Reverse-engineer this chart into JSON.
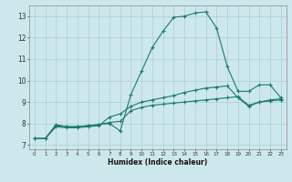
{
  "title": "",
  "xlabel": "Humidex (Indice chaleur)",
  "xlim": [
    -0.5,
    23.5
  ],
  "ylim": [
    6.8,
    13.5
  ],
  "xticks": [
    0,
    1,
    2,
    3,
    4,
    5,
    6,
    7,
    8,
    9,
    10,
    11,
    12,
    13,
    14,
    15,
    16,
    17,
    18,
    19,
    20,
    21,
    22,
    23
  ],
  "yticks": [
    7,
    8,
    9,
    10,
    11,
    12,
    13
  ],
  "background_color": "#cde8ec",
  "line_color": "#1a7a6e",
  "grid_color": "#aacdd4",
  "line1_x": [
    0,
    1,
    2,
    3,
    4,
    5,
    6,
    7,
    8,
    9,
    10,
    11,
    12,
    13,
    14,
    15,
    16,
    17,
    18,
    19,
    20,
    21,
    22,
    23
  ],
  "line1_y": [
    7.3,
    7.3,
    7.95,
    7.85,
    7.85,
    7.9,
    7.95,
    8.0,
    7.65,
    9.35,
    10.45,
    11.55,
    12.3,
    12.95,
    13.0,
    13.15,
    13.2,
    12.45,
    10.65,
    9.5,
    9.5,
    9.8,
    9.8,
    9.2
  ],
  "line2_x": [
    0,
    1,
    2,
    3,
    4,
    5,
    6,
    7,
    8,
    9,
    10,
    11,
    12,
    13,
    14,
    15,
    16,
    17,
    18,
    19,
    20,
    21,
    22,
    23
  ],
  "line2_y": [
    7.3,
    7.3,
    7.85,
    7.8,
    7.8,
    7.85,
    7.9,
    8.3,
    8.45,
    8.8,
    9.0,
    9.1,
    9.2,
    9.3,
    9.45,
    9.55,
    9.65,
    9.7,
    9.75,
    9.2,
    8.8,
    9.0,
    9.1,
    9.15
  ],
  "line3_x": [
    0,
    1,
    2,
    3,
    4,
    5,
    6,
    7,
    8,
    9,
    10,
    11,
    12,
    13,
    14,
    15,
    16,
    17,
    18,
    19,
    20,
    21,
    22,
    23
  ],
  "line3_y": [
    7.3,
    7.3,
    7.9,
    7.85,
    7.85,
    7.9,
    7.95,
    8.05,
    8.1,
    8.6,
    8.75,
    8.85,
    8.9,
    8.95,
    9.0,
    9.05,
    9.1,
    9.15,
    9.2,
    9.25,
    8.85,
    9.0,
    9.05,
    9.1
  ]
}
